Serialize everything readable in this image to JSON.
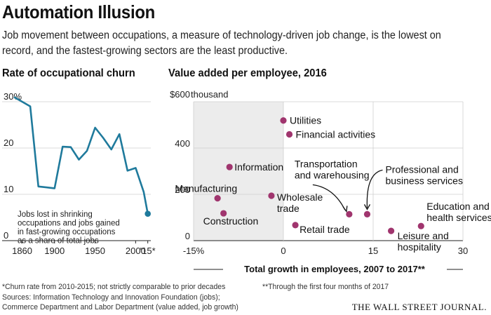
{
  "headline": "Automation Illusion",
  "deck": "Job movement between occupations, a measure of technology-driven job change, is the lowest on record, and the fastest-growing sectors are the least productive.",
  "chart_data": [
    {
      "type": "line",
      "title": "Rate of occupational churn",
      "y_ticks": [
        "30%",
        "20",
        "10",
        "0"
      ],
      "y_tick_values": [
        30,
        20,
        10,
        0
      ],
      "x_ticks": [
        "1860",
        "1900",
        "1950",
        "2000",
        "'15*"
      ],
      "x_tick_values": [
        1860,
        1900,
        1950,
        2000,
        2015
      ],
      "xlim": [
        1850,
        2017
      ],
      "ylim": [
        0,
        30
      ],
      "x": [
        1850,
        1860,
        1870,
        1880,
        1890,
        1900,
        1910,
        1920,
        1930,
        1940,
        1950,
        1960,
        1970,
        1980,
        1990,
        2000,
        2010,
        2015
      ],
      "values": [
        31,
        30.0,
        29.0,
        11.7,
        11.5,
        11.3,
        20.3,
        20.2,
        17.5,
        19.4,
        24.4,
        22.2,
        19.7,
        23.0,
        15.1,
        15.7,
        10.5,
        5.8
      ],
      "color": "#1f7a9c",
      "annotation": "Jobs lost in shrinking occupations and jobs gained in fast-growing occupations as a share of total jobs",
      "annotation_lines": [
        "Jobs lost in shrinking",
        "occupations and jobs gained",
        "in fast-growing occupations",
        "as a share of total jobs"
      ]
    },
    {
      "type": "scatter",
      "title": "Value added per employee, 2016",
      "y_unit": "$600 thousand",
      "y_ticks": [
        "$600",
        "400",
        "200",
        "0"
      ],
      "y_tick_values": [
        600,
        400,
        200,
        0
      ],
      "x_ticks": [
        "-15%",
        "0",
        "15",
        "30"
      ],
      "x_tick_values": [
        -15,
        0,
        15,
        30
      ],
      "xlim": [
        -15,
        30
      ],
      "ylim": [
        0,
        600
      ],
      "xlabel": "Total growth in employees, 2007 to 2017**",
      "shaded_region": [
        -15,
        0
      ],
      "color": "#a0356e",
      "points": [
        {
          "label": "Utilities",
          "x": 0.0,
          "y": 519
        },
        {
          "label": "Financial activities",
          "x": 1.0,
          "y": 459
        },
        {
          "label": "Information",
          "x": -9.0,
          "y": 318
        },
        {
          "label": "Manufacturing",
          "x": -11.0,
          "y": 183
        },
        {
          "label": "Construction",
          "x": -10.0,
          "y": 118
        },
        {
          "label": "Wholesale trade",
          "x": -2.0,
          "y": 194
        },
        {
          "label": "Retail trade",
          "x": 2.0,
          "y": 67
        },
        {
          "label": "Transportation and warehousing",
          "x": 11.0,
          "y": 114
        },
        {
          "label": "Professional and business services",
          "x": 14.0,
          "y": 114
        },
        {
          "label": "Leisure and hospitality",
          "x": 18.0,
          "y": 42
        },
        {
          "label": "Education and health services",
          "x": 23.0,
          "y": 63
        }
      ],
      "label_lines": {
        "Transportation and warehousing": [
          "Transportation",
          "and warehousing"
        ],
        "Professional and business services": [
          "Professional and",
          "business services"
        ],
        "Wholesale trade": [
          "Wholesale",
          "trade"
        ],
        "Leisure and hospitality": [
          "Leisure and",
          "hospitality"
        ],
        "Education and health services": [
          "Education and",
          "health services"
        ]
      }
    }
  ],
  "footnotes": {
    "churn": "*Churn rate from 2010-2015; not strictly comparable to prior decades",
    "months": "**Through the first four months of 2017",
    "sources_line1": "Sources: Information Technology and Innovation Foundation (jobs);",
    "sources_line2": "Commerce Department and Labor Department (value added, job growth)"
  },
  "publisher": "THE WALL STREET JOURNAL."
}
